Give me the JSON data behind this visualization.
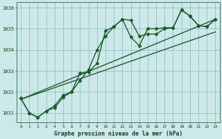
{
  "bg_color": "#cce8e8",
  "grid_color": "#88bbbb",
  "line_color": "#1a5c2a",
  "title": "Graphe pression niveau de la mer (hPa)",
  "ylabel_ticks": [
    1031,
    1032,
    1033,
    1034,
    1035,
    1036
  ],
  "xlim": [
    -0.5,
    23.5
  ],
  "ylim": [
    1030.55,
    1036.25
  ],
  "series": [
    {
      "x": [
        0,
        1,
        2,
        3,
        4,
        5,
        6,
        7,
        8,
        9,
        10,
        11,
        12,
        13,
        14,
        15,
        16,
        17,
        18,
        19,
        20,
        21,
        22,
        23
      ],
      "y": [
        1031.7,
        1031.0,
        1030.8,
        1031.1,
        1031.25,
        1031.75,
        1032.0,
        1032.55,
        1033.05,
        1034.0,
        1034.65,
        1035.1,
        1035.45,
        1035.4,
        1034.65,
        1034.75,
        1034.75,
        1035.0,
        1035.05,
        1035.9,
        1035.6,
        1035.15,
        1035.1,
        1035.45
      ],
      "marker": "D",
      "markersize": 2.5,
      "linewidth": 1.0,
      "linestyle": "-"
    },
    {
      "x": [
        0,
        1,
        2,
        3,
        4,
        5,
        6,
        7,
        8,
        9,
        10,
        11,
        12,
        13,
        14,
        15,
        16,
        17,
        18,
        19,
        20,
        21,
        22,
        23
      ],
      "y": [
        1031.7,
        1031.0,
        1030.8,
        1031.1,
        1031.35,
        1031.85,
        1032.0,
        1032.9,
        1032.95,
        1033.35,
        1034.9,
        1035.1,
        1035.45,
        1034.6,
        1034.2,
        1035.0,
        1035.0,
        1035.05,
        1035.05,
        1035.9,
        1035.6,
        1035.15,
        1035.1,
        1035.45
      ],
      "marker": "D",
      "markersize": 2.5,
      "linewidth": 1.0,
      "linestyle": "-"
    },
    {
      "x": [
        0,
        23
      ],
      "y": [
        1031.65,
        1035.45
      ],
      "marker": null,
      "linewidth": 1.0,
      "linestyle": "-"
    },
    {
      "x": [
        0,
        23
      ],
      "y": [
        1031.65,
        1034.85
      ],
      "marker": null,
      "linewidth": 1.0,
      "linestyle": "-"
    }
  ]
}
